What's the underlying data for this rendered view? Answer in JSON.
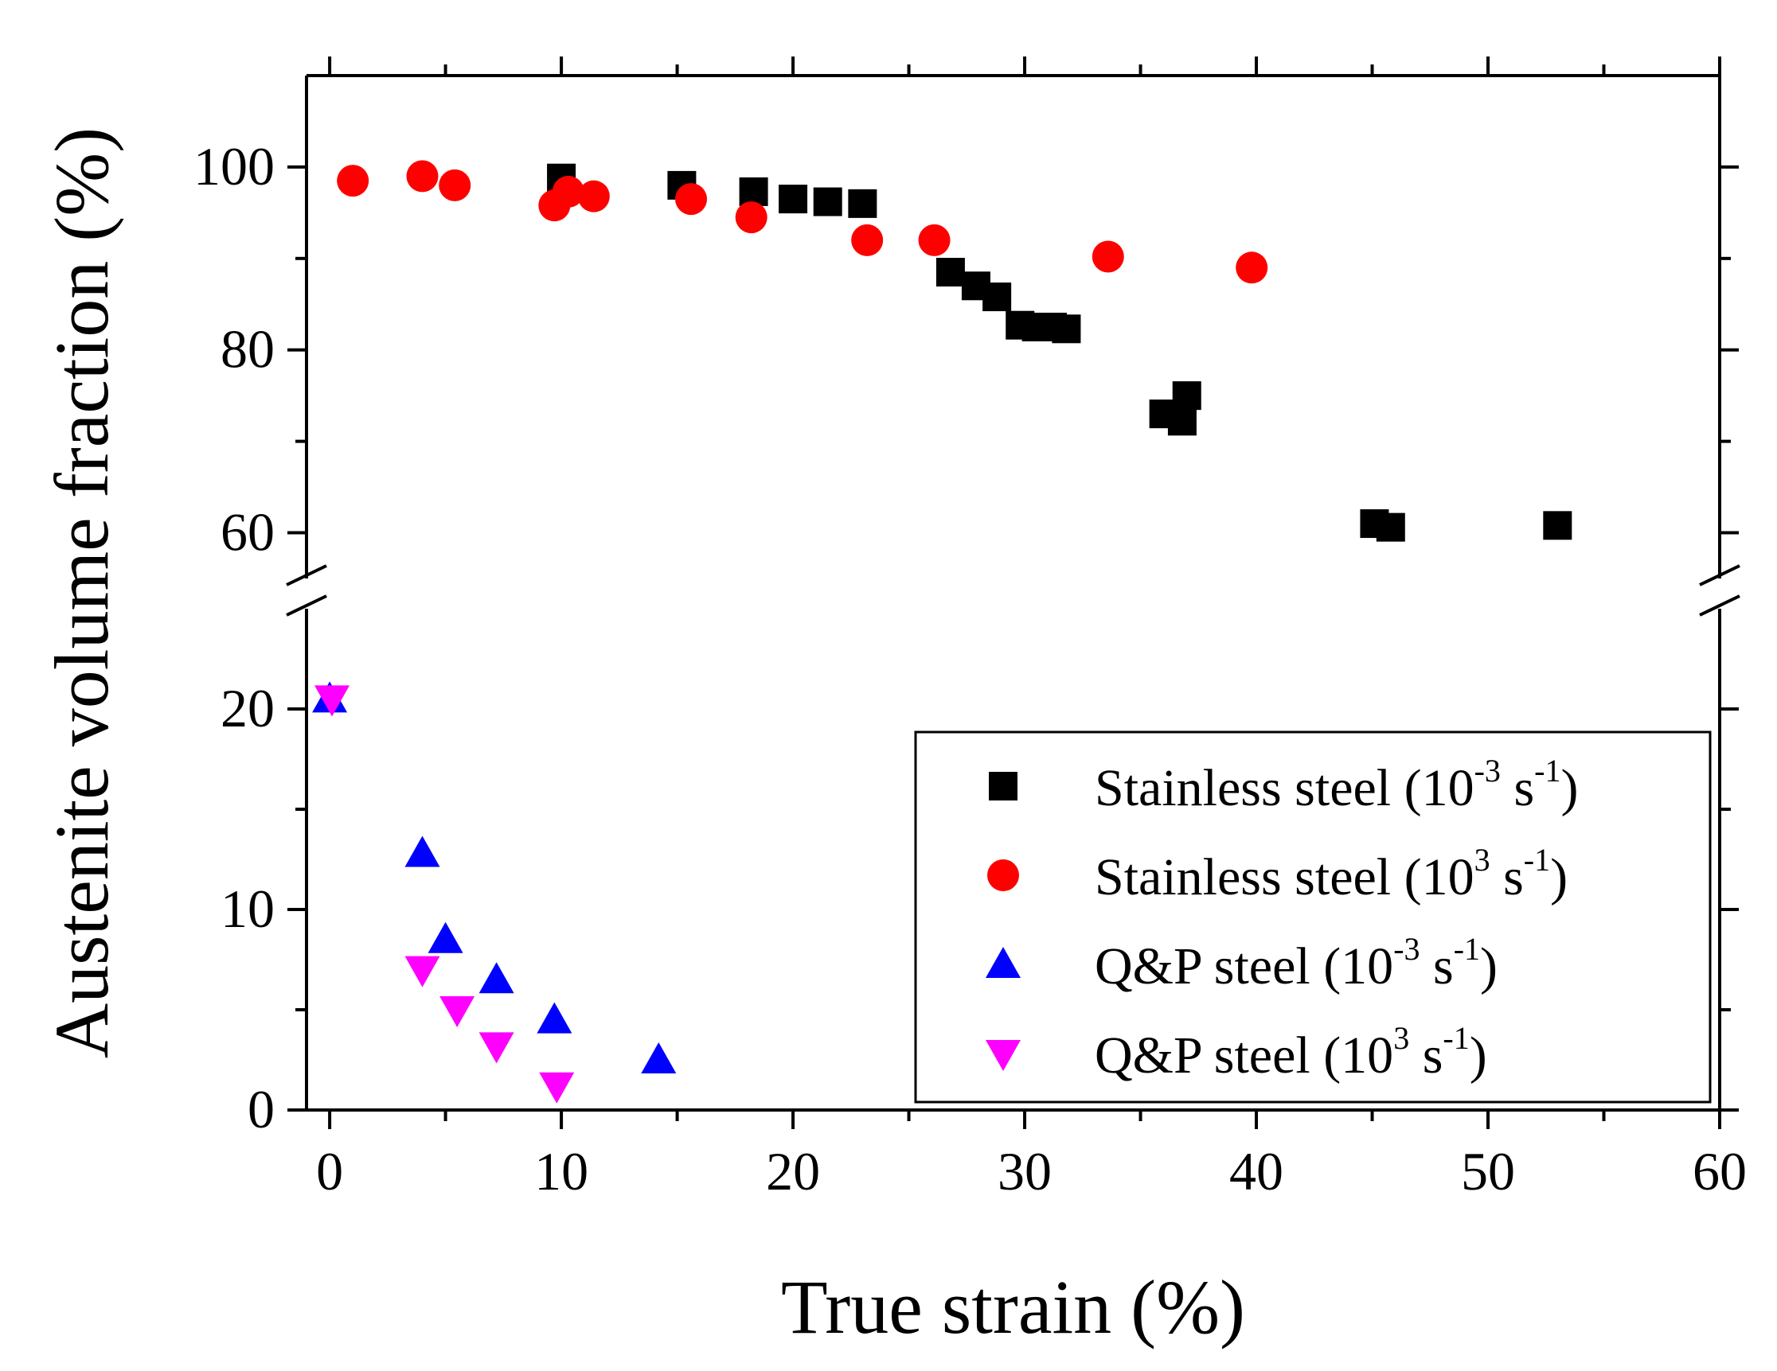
{
  "chart_data": {
    "type": "scatter",
    "title": "",
    "xlabel": "True strain (%)",
    "ylabel": "Austenite volume fraction (%)",
    "xlim": [
      -1,
      60
    ],
    "ylim_lower": [
      0,
      25
    ],
    "ylim_upper": [
      55,
      110
    ],
    "axis_break": true,
    "x_ticks": [
      "0",
      "10",
      "20",
      "30",
      "40",
      "50",
      "60"
    ],
    "y_ticks_upper": [
      "100",
      "80",
      "60"
    ],
    "y_ticks_lower": [
      "20",
      "10",
      "0"
    ],
    "legend_position": "bottom-right",
    "series": [
      {
        "name": "Stainless steel (10-3 s-1)",
        "legend": {
          "prefix": "Stainless steel (10",
          "exp": "-3",
          "mid": " s",
          "exp2": "-1",
          "suffix": ")"
        },
        "marker": "square",
        "color": "#000000",
        "x": [
          10.0,
          15.2,
          18.3,
          20.0,
          21.5,
          23.0,
          26.8,
          27.9,
          28.8,
          29.8,
          30.5,
          31.2,
          31.8,
          36.0,
          36.8,
          37.0,
          45.1,
          45.8,
          53.0
        ],
        "y": [
          98.8,
          98.0,
          97.3,
          96.5,
          96.2,
          96.0,
          88.5,
          87.0,
          85.8,
          82.7,
          82.5,
          82.5,
          82.3,
          73.0,
          72.2,
          75.0,
          61.0,
          60.6,
          60.8
        ]
      },
      {
        "name": "Stainless steel (103 s-1)",
        "legend": {
          "prefix": "Stainless steel (10",
          "exp": "3",
          "mid": " s",
          "exp2": "-1",
          "suffix": ")"
        },
        "marker": "circle",
        "color": "#ff0000",
        "x": [
          1.0,
          4.0,
          5.4,
          9.7,
          10.3,
          11.4,
          15.6,
          18.2,
          23.2,
          26.1,
          33.6,
          39.8
        ],
        "y": [
          98.5,
          99.0,
          98.0,
          95.8,
          97.3,
          96.8,
          96.5,
          94.5,
          92.0,
          92.0,
          90.2,
          89.0
        ]
      },
      {
        "name": "Q&P steel (10-3 s-1)",
        "legend": {
          "prefix": "Q&P steel (10",
          "exp": "-3",
          "mid": " s",
          "exp2": "-1",
          "suffix": ")"
        },
        "marker": "triangle-up",
        "color": "#0000ff",
        "x": [
          0.0,
          4.0,
          5.0,
          7.2,
          9.7,
          14.2
        ],
        "y": [
          20.5,
          12.8,
          8.5,
          6.5,
          4.5,
          2.5
        ]
      },
      {
        "name": "Q&P steel (103 s-1)",
        "legend": {
          "prefix": "Q&P steel (10",
          "exp": "3",
          "mid": " s",
          "exp2": "-1",
          "suffix": ")"
        },
        "marker": "triangle-down",
        "color": "#ff00ff",
        "x": [
          0.1,
          4.0,
          5.5,
          7.2,
          9.8
        ],
        "y": [
          20.5,
          7.0,
          5.0,
          3.2,
          1.2
        ]
      }
    ]
  }
}
